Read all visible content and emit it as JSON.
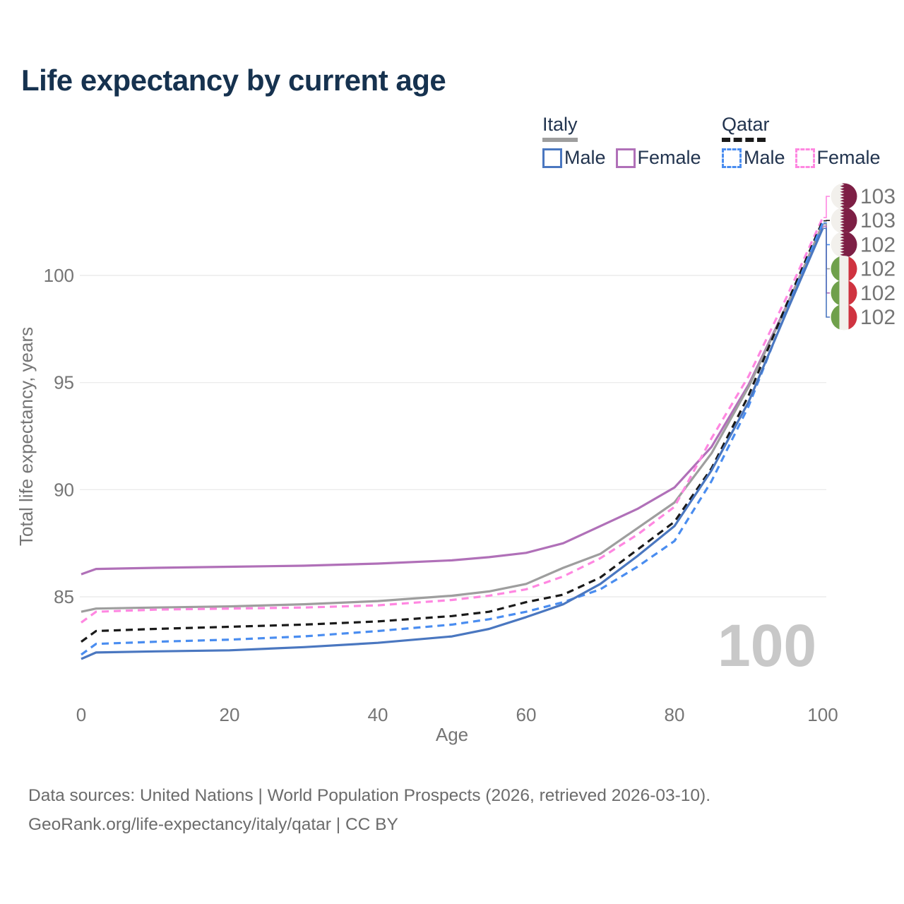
{
  "title": "Life expectancy by current age",
  "age_counter": "100",
  "footer": {
    "line1": "Data sources: United Nations | World Population Prospects (2026, retrieved 2026-03-10).",
    "line2": "GeoRank.org/life-expectancy/italy/qatar | CC BY"
  },
  "colors": {
    "title": "#16324f",
    "axis_text": "#757575",
    "gridline": "#ececec",
    "footer_text": "#6b6b6b",
    "age_counter": "#c8c8c8",
    "italy_male": "#4a77c0",
    "italy_female": "#b070b8",
    "italy_all": "#9e9e9e",
    "qatar_male": "#4a8df0",
    "qatar_female": "#ff87e1",
    "qatar_all": "#1a1a1a"
  },
  "legend": {
    "groups": [
      {
        "country": "Italy",
        "line_style": "solid",
        "items": [
          {
            "label": "Male",
            "color": "#4a77c0"
          },
          {
            "label": "Female",
            "color": "#b070b8"
          }
        ]
      },
      {
        "country": "Qatar",
        "line_style": "dashed",
        "items": [
          {
            "label": "Male",
            "color": "#4a8df0"
          },
          {
            "label": "Female",
            "color": "#ff87e1"
          }
        ]
      }
    ]
  },
  "chart_data": {
    "type": "line",
    "title": "Life expectancy by current age",
    "xlabel": "Age",
    "ylabel": "Total life expectancy, years",
    "xlim": [
      0,
      100
    ],
    "ylim": [
      80.5,
      104.5
    ],
    "x_ticks": [
      0,
      20,
      40,
      60,
      80,
      100
    ],
    "y_ticks": [
      85,
      90,
      95,
      100
    ],
    "grid": "horizontal-only",
    "legend_position": "top-right",
    "x": [
      0,
      2,
      10,
      20,
      30,
      40,
      50,
      55,
      60,
      65,
      70,
      75,
      80,
      85,
      90,
      95,
      100
    ],
    "series": [
      {
        "name": "Italy Female",
        "country": "Italy",
        "sex": "Female",
        "color": "#b070b8",
        "dashed": false,
        "values": [
          86.05,
          86.3,
          86.35,
          86.4,
          86.45,
          86.55,
          86.7,
          86.85,
          87.05,
          87.5,
          88.3,
          89.1,
          90.1,
          92.0,
          94.9,
          98.5,
          102.3
        ]
      },
      {
        "name": "Italy",
        "country": "Italy",
        "sex": "Both",
        "color": "#9e9e9e",
        "dashed": false,
        "values": [
          84.3,
          84.45,
          84.5,
          84.55,
          84.65,
          84.8,
          85.05,
          85.25,
          85.6,
          86.35,
          87.0,
          88.2,
          89.4,
          91.7,
          94.8,
          98.45,
          102.4
        ]
      },
      {
        "name": "Qatar Female",
        "country": "Qatar",
        "sex": "Female",
        "color": "#ff87e1",
        "dashed": true,
        "values": [
          83.8,
          84.3,
          84.4,
          84.45,
          84.5,
          84.6,
          84.85,
          85.05,
          85.35,
          85.95,
          86.8,
          87.9,
          89.2,
          92.4,
          95.3,
          98.9,
          102.7
        ]
      },
      {
        "name": "Qatar",
        "country": "Qatar",
        "sex": "Both",
        "color": "#1a1a1a",
        "dashed": true,
        "values": [
          82.9,
          83.4,
          83.5,
          83.6,
          83.7,
          83.85,
          84.1,
          84.3,
          84.75,
          85.1,
          85.9,
          87.2,
          88.5,
          91.0,
          94.4,
          98.55,
          102.55
        ]
      },
      {
        "name": "Qatar Male",
        "country": "Qatar",
        "sex": "Male",
        "color": "#4a8df0",
        "dashed": true,
        "values": [
          82.3,
          82.8,
          82.9,
          83.0,
          83.15,
          83.4,
          83.7,
          83.95,
          84.3,
          84.75,
          85.35,
          86.4,
          87.6,
          90.4,
          93.9,
          98.3,
          102.45
        ]
      },
      {
        "name": "Italy Male",
        "country": "Italy",
        "sex": "Male",
        "color": "#4a77c0",
        "dashed": false,
        "values": [
          82.1,
          82.4,
          82.45,
          82.5,
          82.65,
          82.85,
          83.15,
          83.5,
          84.05,
          84.65,
          85.6,
          86.9,
          88.3,
          90.9,
          94.1,
          98.2,
          102.2
        ]
      }
    ],
    "end_labels": [
      {
        "series": "Qatar Female",
        "text": "103",
        "color": "#ff87e1",
        "flag": "qatar"
      },
      {
        "series": "Qatar",
        "text": "103",
        "color": "#1a1a1a",
        "flag": "qatar"
      },
      {
        "series": "Qatar Male",
        "text": "102",
        "color": "#4a8df0",
        "flag": "qatar"
      },
      {
        "series": "Italy",
        "text": "102",
        "color": "#9e9e9e",
        "flag": "italy"
      },
      {
        "series": "Italy Female",
        "text": "102",
        "color": "#b070b8",
        "flag": "italy"
      },
      {
        "series": "Italy Male",
        "text": "102",
        "color": "#4a77c0",
        "flag": "italy"
      }
    ]
  }
}
